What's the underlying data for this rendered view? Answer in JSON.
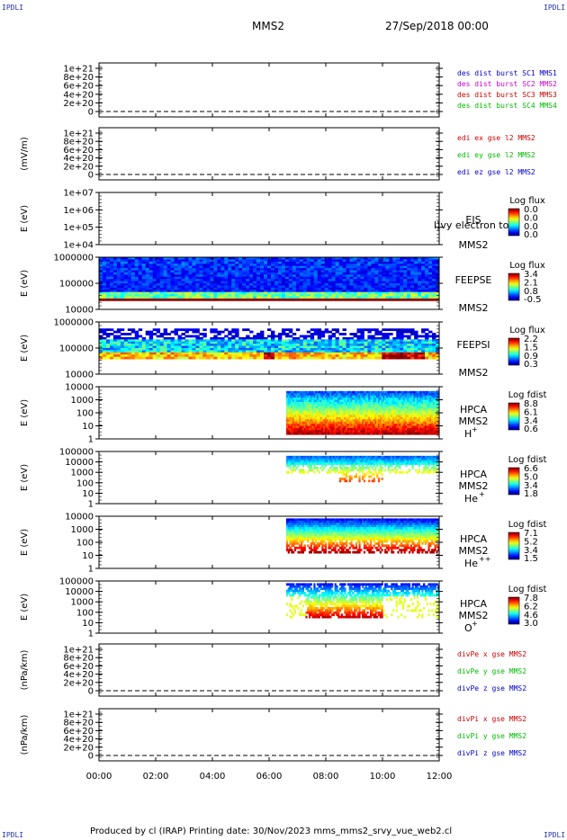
{
  "corner_marks": {
    "tl": "IPDLI",
    "tr": "IPDLI",
    "bl": "IPDLI",
    "br": "IPDLI"
  },
  "header": {
    "spacecraft": "MMS2",
    "datetime": "27/Sep/2018 00:00"
  },
  "footer": {
    "text": "Produced by cl (IRAP)   Printing date: 30/Nov/2023   mms_mms2_srvy_vue_web2.cl"
  },
  "time_axis": {
    "ticks": [
      "00:00",
      "02:00",
      "04:00",
      "06:00",
      "08:00",
      "10:00",
      "12:00"
    ],
    "range_hours": [
      0,
      12
    ]
  },
  "colors": {
    "black": "#000000",
    "blue": "#0000cc",
    "magenta": "#cc00cc",
    "red": "#cc0000",
    "green": "#00bb00"
  },
  "chart_data": [
    {
      "type": "line",
      "id": "dist",
      "ylabel": "",
      "yticks": [
        "1e+21",
        "8e+20",
        "6e+20",
        "4e+20",
        "2e+20",
        "0"
      ],
      "legend": [
        {
          "label": "des dist burst SC1 MMS1",
          "color": "#0000cc"
        },
        {
          "label": "des dist burst SC2 MMS2",
          "color": "#cc00cc"
        },
        {
          "label": "des dist burst SC3 MMS3",
          "color": "#cc0000"
        },
        {
          "label": "des dist burst SC4 MMS4",
          "color": "#00bb00"
        }
      ]
    },
    {
      "type": "line",
      "id": "edi",
      "ylabel": "(mV/m)",
      "yticks": [
        "1e+21",
        "8e+20",
        "6e+20",
        "4e+20",
        "2e+20",
        "0"
      ],
      "legend": [
        {
          "label": "edi ex gse l2 MMS2",
          "color": "#cc0000"
        },
        {
          "label": "edi ey gse l2 MMS2",
          "color": "#00bb00"
        },
        {
          "label": "edi ez gse l2 MMS2",
          "color": "#0000cc"
        }
      ]
    },
    {
      "type": "heatmap",
      "id": "eis",
      "ylabel": "E (eV)",
      "yticks": [
        "1e+07",
        "1e+06",
        "1e+05",
        "1e+04"
      ],
      "labels": [
        "EIS",
        "MMS2"
      ],
      "overlay": "l)vy electron to",
      "cbar_title": "Log flux",
      "cbar_ticks": [
        "0.0",
        "0.0",
        "0.0",
        "0.0"
      ],
      "data_start_h": null
    },
    {
      "type": "heatmap",
      "id": "feepse",
      "ylabel": "E (eV)",
      "yticks": [
        "1000000",
        "100000",
        "10000"
      ],
      "labels": [
        "FEEPSE",
        "MMS2"
      ],
      "cbar_title": "Log flux",
      "cbar_ticks": [
        "3.4",
        "2.1",
        "0.8",
        "-0.5"
      ],
      "data_start_h": 0
    },
    {
      "type": "heatmap",
      "id": "feepsi",
      "ylabel": "E (eV)",
      "yticks": [
        "1000000",
        "100000",
        "10000"
      ],
      "labels": [
        "FEEPSI",
        "MMS2"
      ],
      "cbar_title": "Log flux",
      "cbar_ticks": [
        "2.2",
        "1.5",
        "0.9",
        "0.3"
      ],
      "data_start_h": 0
    },
    {
      "type": "heatmap",
      "id": "hpca_h",
      "ylabel": "E (eV)",
      "yticks": [
        "10000",
        "1000",
        "100",
        "10",
        "1"
      ],
      "labels": [
        "HPCA",
        "MMS2"
      ],
      "species": "H",
      "charge": "+",
      "cbar_title": "Log fdist",
      "cbar_ticks": [
        "8.8",
        "6.1",
        "3.4",
        "0.6"
      ],
      "data_start_h": 6.6
    },
    {
      "type": "heatmap",
      "id": "hpca_he",
      "ylabel": "E (eV)",
      "yticks": [
        "100000",
        "10000",
        "1000",
        "100",
        "10",
        "1"
      ],
      "labels": [
        "HPCA",
        "MMS2"
      ],
      "species": "He",
      "charge": "+",
      "cbar_title": "Log fdist",
      "cbar_ticks": [
        "6.6",
        "5.0",
        "3.4",
        "1.8"
      ],
      "data_start_h": 6.6
    },
    {
      "type": "heatmap",
      "id": "hpca_he2",
      "ylabel": "E (eV)",
      "yticks": [
        "10000",
        "1000",
        "100",
        "10",
        "1"
      ],
      "labels": [
        "HPCA",
        "MMS2"
      ],
      "species": "He",
      "charge": "++",
      "cbar_title": "Log fdist",
      "cbar_ticks": [
        "7.1",
        "5.2",
        "3.4",
        "1.5"
      ],
      "data_start_h": 6.6
    },
    {
      "type": "heatmap",
      "id": "hpca_o",
      "ylabel": "E (eV)",
      "yticks": [
        "100000",
        "10000",
        "1000",
        "100",
        "10",
        "1"
      ],
      "labels": [
        "HPCA",
        "MMS2"
      ],
      "species": "O",
      "charge": "+",
      "cbar_title": "Log fdist",
      "cbar_ticks": [
        "7.8",
        "6.2",
        "4.6",
        "3.0"
      ],
      "data_start_h": 6.6
    },
    {
      "type": "line",
      "id": "divpe",
      "ylabel": "(nPa/km)",
      "yticks": [
        "1e+21",
        "8e+20",
        "6e+20",
        "4e+20",
        "2e+20",
        "0"
      ],
      "legend": [
        {
          "label": "divPe x gse MMS2",
          "color": "#cc0000"
        },
        {
          "label": "divPe y gse MMS2",
          "color": "#00bb00"
        },
        {
          "label": "divPe z gse MMS2",
          "color": "#0000cc"
        }
      ]
    },
    {
      "type": "line",
      "id": "divpi",
      "ylabel": "(nPa/km)",
      "yticks": [
        "1e+21",
        "8e+20",
        "6e+20",
        "4e+20",
        "2e+20",
        "0"
      ],
      "legend": [
        {
          "label": "divPi x gse MMS2",
          "color": "#cc0000"
        },
        {
          "label": "divPi y gse MMS2",
          "color": "#00bb00"
        },
        {
          "label": "divPi z gse MMS2",
          "color": "#0000cc"
        }
      ]
    }
  ]
}
